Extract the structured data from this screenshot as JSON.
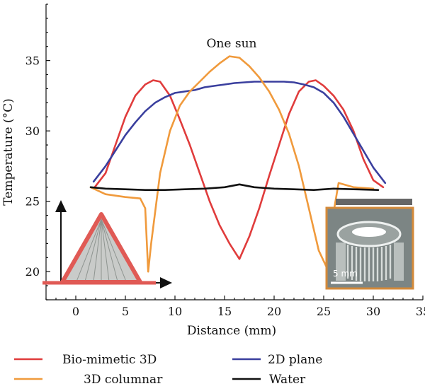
{
  "chart_data": {
    "type": "line",
    "title": "",
    "xlabel": "Distance (mm)",
    "ylabel": "Temperature (°C)",
    "xlim": [
      -3,
      35
    ],
    "ylim": [
      18,
      39
    ],
    "xticks": [
      0,
      5,
      10,
      15,
      20,
      25,
      30,
      35
    ],
    "yticks": [
      20,
      25,
      30,
      35
    ],
    "grid": false,
    "legend_position": "bottom",
    "annotation": "One sun",
    "inset_scale_label": "5 mm",
    "series": [
      {
        "name": "Bio-mimetic 3D",
        "color": "#e03c3c",
        "x": [
          1.8,
          3,
          4,
          5,
          6,
          7,
          7.8,
          8.5,
          9.5,
          10.5,
          11.5,
          12.5,
          13.5,
          14.5,
          15.5,
          16.5,
          17.5,
          18.5,
          19.5,
          20.5,
          21.5,
          22.5,
          23.5,
          24.2,
          25,
          26,
          27,
          28,
          29,
          30,
          31
        ],
        "y": [
          25.9,
          27,
          29,
          31,
          32.5,
          33.3,
          33.6,
          33.5,
          32.5,
          30.8,
          29,
          27,
          25,
          23.3,
          22,
          20.9,
          22.5,
          24.5,
          26.8,
          29,
          31.2,
          32.8,
          33.5,
          33.6,
          33.2,
          32.5,
          31.5,
          30,
          28,
          26.5,
          26
        ]
      },
      {
        "name": "2D plane",
        "color": "#3a3f9e",
        "x": [
          1.8,
          3,
          4,
          5,
          6,
          7,
          8,
          9,
          10,
          11,
          12,
          13,
          14,
          15,
          16,
          17,
          18,
          19,
          20,
          21,
          22,
          23,
          24,
          25,
          26,
          27,
          28,
          29,
          30,
          31.2
        ],
        "y": [
          26.4,
          27.5,
          28.6,
          29.7,
          30.6,
          31.4,
          32,
          32.4,
          32.7,
          32.8,
          32.9,
          33.1,
          33.2,
          33.3,
          33.4,
          33.45,
          33.5,
          33.5,
          33.5,
          33.5,
          33.45,
          33.3,
          33.1,
          32.7,
          32,
          31,
          29.8,
          28.6,
          27.4,
          26.3
        ]
      },
      {
        "name": "3D columnar",
        "color": "#f09a3c",
        "x": [
          1.5,
          3,
          5,
          6.5,
          7,
          7.3,
          7.6,
          8.5,
          9.5,
          10.5,
          11.5,
          12.5,
          13.5,
          14.5,
          15.5,
          16.5,
          17.5,
          18.5,
          19.5,
          20.5,
          21.5,
          22.5,
          23.5,
          24.5,
          25.3,
          25.7,
          26.5,
          28,
          30
        ],
        "y": [
          26,
          25.5,
          25.3,
          25.2,
          24.5,
          20,
          22,
          27,
          30,
          31.8,
          32.8,
          33.5,
          34.2,
          34.8,
          35.3,
          35.2,
          34.6,
          33.8,
          32.8,
          31.5,
          29.8,
          27.5,
          24.5,
          21.5,
          20.3,
          23,
          26.3,
          26,
          25.9
        ]
      },
      {
        "name": "Water",
        "color": "#111111",
        "x": [
          1.5,
          3,
          5,
          7,
          9,
          11,
          13,
          15,
          16.5,
          18,
          20,
          22,
          24,
          26,
          28,
          30.5
        ],
        "y": [
          26,
          25.9,
          25.85,
          25.8,
          25.8,
          25.85,
          25.9,
          26,
          26.2,
          26,
          25.9,
          25.85,
          25.8,
          25.9,
          25.85,
          25.8
        ]
      }
    ],
    "legend": [
      {
        "label": "Bio-mimetic 3D",
        "color": "#e03c3c"
      },
      {
        "label": "2D plane",
        "color": "#3a3f9e"
      },
      {
        "label": "3D columnar",
        "color": "#f09a3c"
      },
      {
        "label": "Water",
        "color": "#111111"
      }
    ]
  }
}
